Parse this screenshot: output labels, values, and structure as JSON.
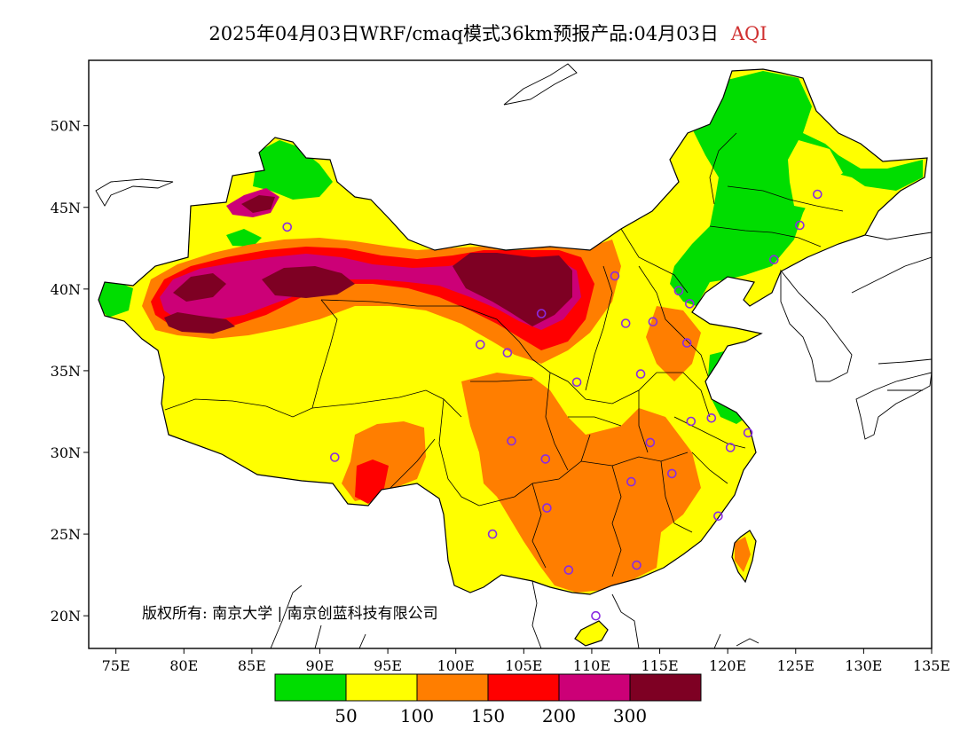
{
  "title": {
    "text": "2025年04月03日WRF/cmaq模式36km预报产品:04月03日",
    "product": "AQI",
    "product_color": "#d03030"
  },
  "map": {
    "lat_ticks": [
      "20N",
      "25N",
      "30N",
      "35N",
      "40N",
      "45N",
      "50N"
    ],
    "lon_ticks": [
      "75E",
      "80E",
      "85E",
      "90E",
      "95E",
      "100E",
      "105E",
      "110E",
      "115E",
      "120E",
      "125E",
      "130E",
      "135E"
    ],
    "lon_range": [
      73,
      135
    ],
    "lat_range": [
      18,
      54
    ],
    "copyright": "版权所有: 南京大学 | 南京创蓝科技有限公司",
    "station_marker_color": "#8a2be2",
    "stations": [
      {
        "lon": 87.6,
        "lat": 43.8
      },
      {
        "lon": 91.1,
        "lat": 29.7
      },
      {
        "lon": 101.8,
        "lat": 36.6
      },
      {
        "lon": 103.8,
        "lat": 36.1
      },
      {
        "lon": 106.3,
        "lat": 38.5
      },
      {
        "lon": 104.1,
        "lat": 30.7
      },
      {
        "lon": 106.6,
        "lat": 29.6
      },
      {
        "lon": 106.7,
        "lat": 26.6
      },
      {
        "lon": 102.7,
        "lat": 25.0
      },
      {
        "lon": 108.3,
        "lat": 22.8
      },
      {
        "lon": 110.3,
        "lat": 20.0
      },
      {
        "lon": 113.3,
        "lat": 23.1
      },
      {
        "lon": 112.9,
        "lat": 28.2
      },
      {
        "lon": 114.3,
        "lat": 30.6
      },
      {
        "lon": 115.9,
        "lat": 28.7
      },
      {
        "lon": 117.3,
        "lat": 31.9
      },
      {
        "lon": 118.8,
        "lat": 32.1
      },
      {
        "lon": 120.2,
        "lat": 30.3
      },
      {
        "lon": 121.5,
        "lat": 31.2
      },
      {
        "lon": 119.3,
        "lat": 26.1
      },
      {
        "lon": 113.6,
        "lat": 34.8
      },
      {
        "lon": 108.9,
        "lat": 34.3
      },
      {
        "lon": 112.5,
        "lat": 37.9
      },
      {
        "lon": 114.5,
        "lat": 38.0
      },
      {
        "lon": 117.0,
        "lat": 36.7
      },
      {
        "lon": 117.2,
        "lat": 39.1
      },
      {
        "lon": 116.4,
        "lat": 39.9
      },
      {
        "lon": 111.7,
        "lat": 40.8
      },
      {
        "lon": 123.4,
        "lat": 41.8
      },
      {
        "lon": 125.3,
        "lat": 43.9
      },
      {
        "lon": 126.6,
        "lat": 45.8
      }
    ]
  },
  "legend": {
    "title": "",
    "bins": [
      {
        "color": "#00dd00"
      },
      {
        "color": "#ffff00"
      },
      {
        "color": "#ff7e00"
      },
      {
        "color": "#ff0000"
      },
      {
        "color": "#cc0077"
      },
      {
        "color": "#7e0023"
      }
    ],
    "labels": [
      "50",
      "100",
      "150",
      "200",
      "300"
    ]
  }
}
